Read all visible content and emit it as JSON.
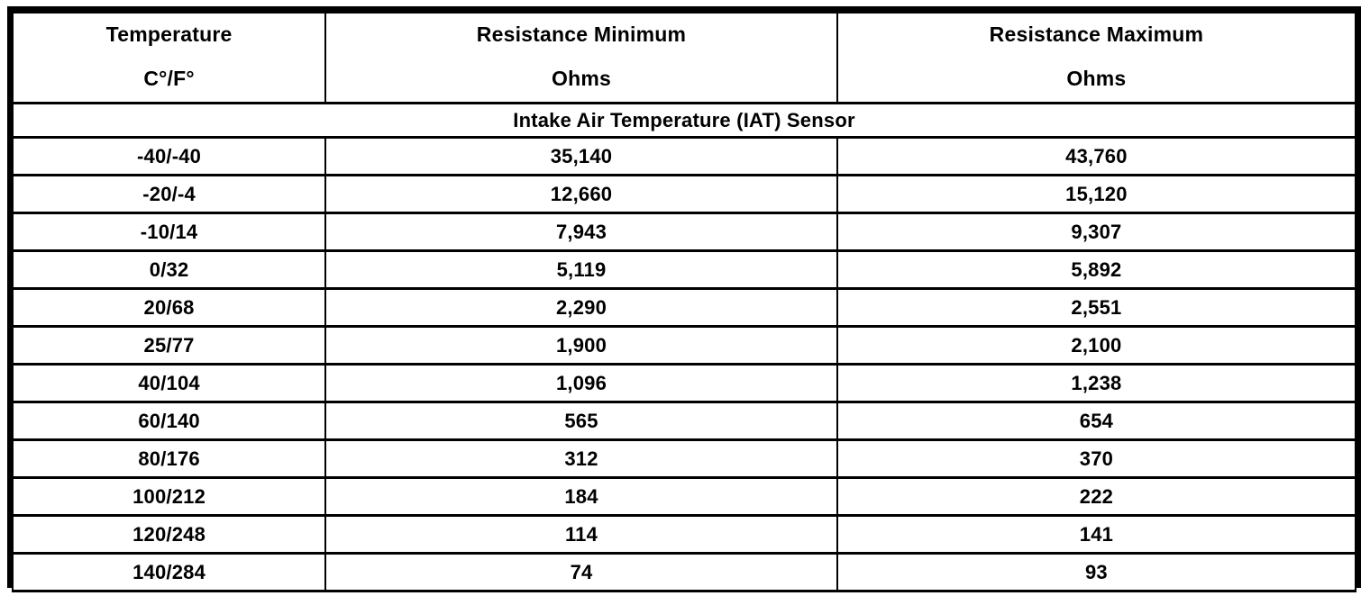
{
  "table": {
    "headers": [
      {
        "title": "Temperature",
        "unit": "C°/F°"
      },
      {
        "title": "Resistance Minimum",
        "unit": "Ohms"
      },
      {
        "title": "Resistance Maximum",
        "unit": "Ohms"
      }
    ],
    "section": "Intake Air Temperature (IAT) Sensor",
    "rows": [
      [
        "-40/-40",
        "35,140",
        "43,760"
      ],
      [
        "-20/-4",
        "12,660",
        "15,120"
      ],
      [
        "-10/14",
        "7,943",
        "9,307"
      ],
      [
        "0/32",
        "5,119",
        "5,892"
      ],
      [
        "20/68",
        "2,290",
        "2,551"
      ],
      [
        "25/77",
        "1,900",
        "2,100"
      ],
      [
        "40/104",
        "1,096",
        "1,238"
      ],
      [
        "60/140",
        "565",
        "654"
      ],
      [
        "80/176",
        "312",
        "370"
      ],
      [
        "100/212",
        "184",
        "222"
      ],
      [
        "120/248",
        "114",
        "141"
      ],
      [
        "140/284",
        "74",
        "93"
      ]
    ]
  },
  "colors": {
    "text": "#000000",
    "border": "#000000",
    "background": "#ffffff"
  }
}
